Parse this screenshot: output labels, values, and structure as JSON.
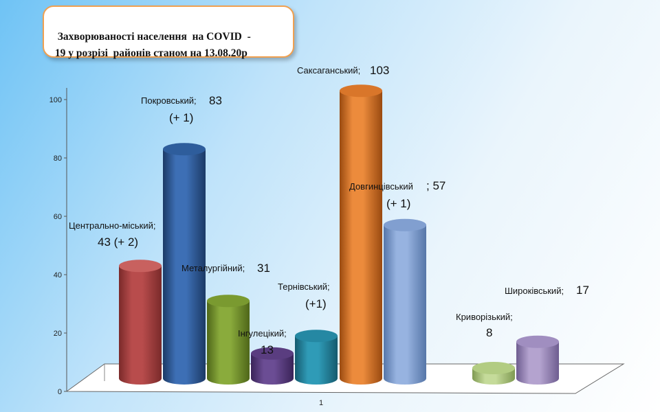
{
  "title": "Захворюваності населення  на COVID  -\n 19 у розрізі  районів станом на 13.08.20р",
  "chart_data": {
    "type": "bar",
    "title": "Захворюваності населення  на COVID  -\n 19 у розрізі  районів станом на 13.08.20р",
    "xlabel": "",
    "ylabel": "",
    "categories": [
      "1"
    ],
    "ylim": [
      0,
      100
    ],
    "yticks": [
      "0",
      "20",
      "40",
      "60",
      "80",
      "100"
    ],
    "grid": false,
    "legend": "none",
    "series": [
      {
        "label_name": "Центрально-міський;",
        "label_value": "43 (+ 2)",
        "value": 43,
        "color": "#b84c4c",
        "top": "#c8615f",
        "dark": "#7a2a2a"
      },
      {
        "label_name": "Покровський;",
        "label_value": "83",
        "label_extra": "(+ 1)",
        "value": 83,
        "color": "#3d6fb5",
        "top": "#2e5d9c",
        "dark": "#1c3a66"
      },
      {
        "label_name": "Металургійний;",
        "label_value": "31",
        "value": 31,
        "color": "#8aab3c",
        "top": "#7a9a30",
        "dark": "#4e6619"
      },
      {
        "label_name": "Інгулецікий;",
        "label_value": "13",
        "value": 13,
        "color": "#6b4d94",
        "top": "#5a3d80",
        "dark": "#3a2358"
      },
      {
        "label_name": "Тернівський;",
        "label_value": "19",
        "label_extra": "(+1)",
        "value": 19,
        "color": "#2f9bb7",
        "top": "#2588a3",
        "dark": "#155a6e"
      },
      {
        "label_name": "Саксаганський;",
        "label_value": "103",
        "value": 103,
        "color": "#ec8b3c",
        "top": "#d9762a",
        "dark": "#9a4a10"
      },
      {
        "label_name": "Довгинцівський",
        "label_value": "; 57",
        "label_extra": "(+ 1)",
        "value": 57,
        "color": "#97b3e0",
        "top": "#819fd0",
        "dark": "#5676a8"
      },
      {
        "label_name": "Криворізький;",
        "label_value": "8",
        "value": 8,
        "color": "#c5db9a",
        "top": "#b2cc82",
        "dark": "#7f9a52"
      },
      {
        "label_name": "Широківський;",
        "label_value": "17",
        "value": 17,
        "color": "#b4a3cf",
        "top": "#a08ec0",
        "dark": "#6e5d90"
      }
    ]
  }
}
